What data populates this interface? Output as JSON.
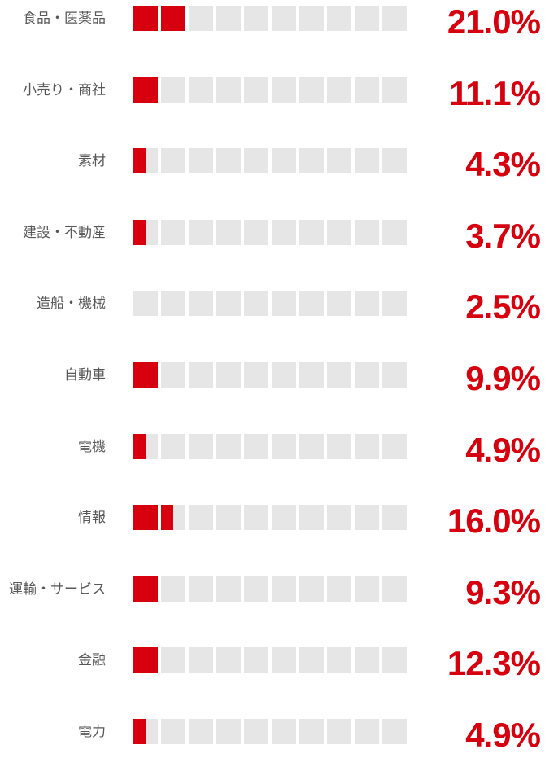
{
  "chart_data": {
    "type": "bar",
    "orientation": "horizontal",
    "title": "",
    "unit": "%",
    "blocks_per_row": 10,
    "percent_per_block": 10,
    "categories": [
      "食品・医薬品",
      "小売り・商社",
      "素材",
      "建設・不動産",
      "造船・機械",
      "自動車",
      "電機",
      "情報",
      "運輸・サービス",
      "金融",
      "電力"
    ],
    "values": [
      21.0,
      11.1,
      4.3,
      3.7,
      2.5,
      9.9,
      4.9,
      16.0,
      9.3,
      12.3,
      4.9
    ],
    "value_labels": [
      "21.0%",
      "11.1%",
      "4.3%",
      "3.7%",
      "2.5%",
      "9.9%",
      "4.9%",
      "16.0%",
      "9.3%",
      "12.3%",
      "4.9%"
    ],
    "filled_blocks": [
      2,
      1,
      0.5,
      0.5,
      0,
      1,
      0.5,
      1.5,
      1,
      1,
      0.5
    ],
    "colors": {
      "fill_red": "#d7000f",
      "empty_gray": "#e6e6e6",
      "value_text": "#d7000f",
      "label_text": "#595757",
      "background": "#ffffff"
    },
    "legend": "none",
    "grid": false
  }
}
